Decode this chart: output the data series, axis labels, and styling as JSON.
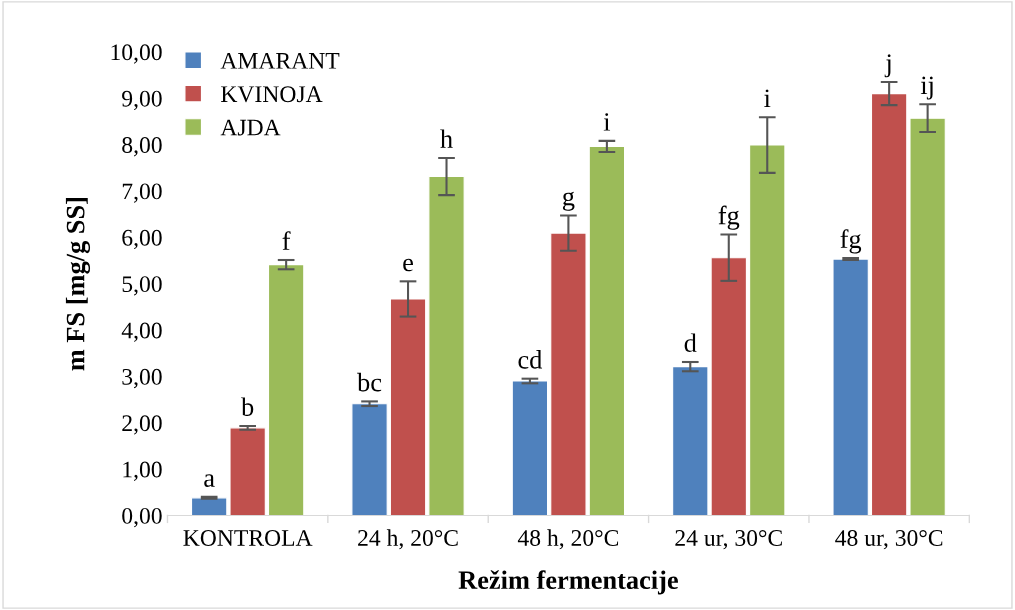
{
  "chart_data": {
    "type": "bar",
    "xlabel": "Režim fermentacije",
    "ylabel": "m FS [mg/g SS]",
    "categories": [
      "KONTROLA",
      "24 h, 20°C",
      "48 h, 20°C",
      "24 ur, 30°C",
      "48 ur, 30°C"
    ],
    "series": [
      {
        "name": "AMARANT",
        "color": "#4f81bd",
        "values": [
          0.38,
          2.41,
          2.9,
          3.21,
          5.53
        ],
        "errors": [
          0.02,
          0.05,
          0.05,
          0.1,
          0.02
        ],
        "value_labels": [
          "a",
          "bc",
          "cd",
          "d",
          "fg"
        ]
      },
      {
        "name": "KVINOJA",
        "color": "#c0504d",
        "values": [
          1.89,
          4.67,
          6.09,
          5.56,
          9.1
        ],
        "errors": [
          0.04,
          0.38,
          0.38,
          0.5,
          0.25
        ],
        "value_labels": [
          "b",
          "e",
          "g",
          "fg",
          "j"
        ]
      },
      {
        "name": "AJDA",
        "color": "#9bbb59",
        "values": [
          5.41,
          7.31,
          7.96,
          7.99,
          8.57
        ],
        "errors": [
          0.1,
          0.4,
          0.12,
          0.6,
          0.3
        ],
        "value_labels": [
          "f",
          "h",
          "i",
          "i",
          "ij"
        ]
      }
    ],
    "ylim": [
      0,
      10
    ],
    "yticks": [
      {
        "value": 0,
        "label": "0,00"
      },
      {
        "value": 1,
        "label": "1,00"
      },
      {
        "value": 2,
        "label": "2,00"
      },
      {
        "value": 3,
        "label": "3,00"
      },
      {
        "value": 4,
        "label": "4,00"
      },
      {
        "value": 5,
        "label": "5,00"
      },
      {
        "value": 6,
        "label": "6,00"
      },
      {
        "value": 7,
        "label": "7,00"
      },
      {
        "value": 8,
        "label": "8,00"
      },
      {
        "value": 9,
        "label": "9,00"
      },
      {
        "value": 10,
        "label": "10,00"
      }
    ],
    "grid": false,
    "legend": "top left"
  }
}
